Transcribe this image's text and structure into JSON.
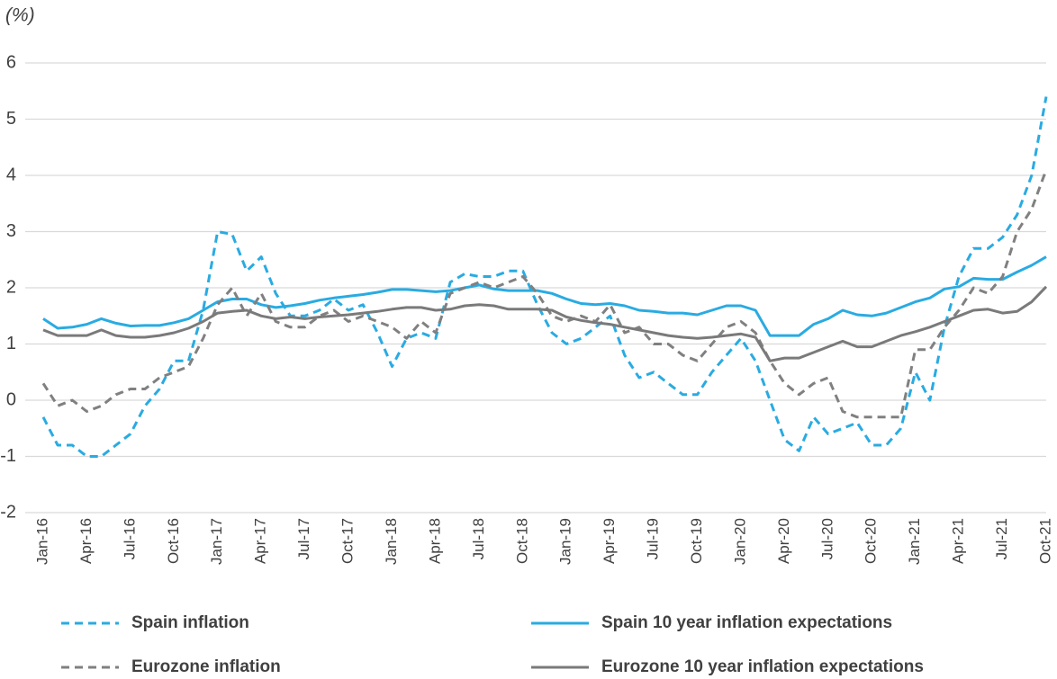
{
  "chart_data": {
    "type": "line",
    "y_label": "(%)",
    "categories": [
      "Jan-16",
      null,
      null,
      "Apr-16",
      null,
      null,
      "Jul-16",
      null,
      null,
      "Oct-16",
      null,
      null,
      "Jan-17",
      null,
      null,
      "Apr-17",
      null,
      null,
      "Jul-17",
      null,
      null,
      "Oct-17",
      null,
      null,
      "Jan-18",
      null,
      null,
      "Apr-18",
      null,
      null,
      "Jul-18",
      null,
      null,
      "Oct-18",
      null,
      null,
      "Jan-19",
      null,
      null,
      "Apr-19",
      null,
      null,
      "Jul-19",
      null,
      null,
      "Oct-19",
      null,
      null,
      "Jan-20",
      null,
      null,
      "Apr-20",
      null,
      null,
      "Jul-20",
      null,
      null,
      "Oct-20",
      null,
      null,
      "Jan-21",
      null,
      null,
      "Apr-21",
      null,
      null,
      "Jul-21",
      null,
      null,
      "Oct-21"
    ],
    "series": [
      {
        "name": "Spain inflation",
        "color": "#29abe2",
        "style": "dashed",
        "values": [
          -0.3,
          -0.8,
          -0.8,
          -1.0,
          -1.0,
          -0.8,
          -0.6,
          -0.1,
          0.2,
          0.7,
          0.7,
          1.6,
          3.0,
          2.95,
          2.3,
          2.55,
          1.9,
          1.5,
          1.5,
          1.6,
          1.8,
          1.6,
          1.7,
          1.2,
          0.6,
          1.1,
          1.2,
          1.1,
          2.1,
          2.25,
          2.2,
          2.2,
          2.3,
          2.3,
          1.7,
          1.2,
          1.0,
          1.1,
          1.3,
          1.5,
          0.8,
          0.4,
          0.5,
          0.3,
          0.1,
          0.1,
          0.5,
          0.8,
          1.1,
          0.7,
          0.0,
          -0.7,
          -0.9,
          -0.3,
          -0.6,
          -0.5,
          -0.4,
          -0.8,
          -0.8,
          -0.5,
          0.5,
          0.0,
          1.3,
          2.2,
          2.7,
          2.7,
          2.9,
          3.3,
          4.0,
          5.4
        ]
      },
      {
        "name": "Spain 10 year inflation expectations",
        "color": "#29abe2",
        "style": "solid",
        "values": [
          1.45,
          1.28,
          1.3,
          1.35,
          1.45,
          1.37,
          1.32,
          1.33,
          1.33,
          1.38,
          1.45,
          1.6,
          1.75,
          1.8,
          1.8,
          1.7,
          1.65,
          1.68,
          1.72,
          1.78,
          1.82,
          1.85,
          1.88,
          1.92,
          1.97,
          1.97,
          1.95,
          1.93,
          1.95,
          2.0,
          2.05,
          1.98,
          1.95,
          1.95,
          1.95,
          1.9,
          1.8,
          1.72,
          1.7,
          1.72,
          1.68,
          1.6,
          1.58,
          1.55,
          1.55,
          1.52,
          1.6,
          1.68,
          1.68,
          1.6,
          1.15,
          1.15,
          1.15,
          1.35,
          1.45,
          1.6,
          1.52,
          1.5,
          1.55,
          1.65,
          1.75,
          1.82,
          1.98,
          2.02,
          2.17,
          2.15,
          2.15,
          2.28,
          2.4,
          2.55
        ]
      },
      {
        "name": "Eurozone inflation",
        "color": "#808080",
        "style": "dashed",
        "values": [
          0.3,
          -0.1,
          0.0,
          -0.2,
          -0.1,
          0.1,
          0.2,
          0.2,
          0.4,
          0.5,
          0.6,
          1.1,
          1.7,
          2.0,
          1.5,
          1.9,
          1.4,
          1.3,
          1.3,
          1.5,
          1.6,
          1.4,
          1.5,
          1.4,
          1.3,
          1.1,
          1.4,
          1.2,
          1.9,
          2.0,
          2.1,
          2.0,
          2.1,
          2.2,
          1.9,
          1.5,
          1.4,
          1.5,
          1.4,
          1.7,
          1.2,
          1.3,
          1.0,
          1.0,
          0.8,
          0.7,
          1.0,
          1.3,
          1.4,
          1.2,
          0.7,
          0.3,
          0.1,
          0.3,
          0.4,
          -0.2,
          -0.3,
          -0.3,
          -0.3,
          -0.3,
          0.9,
          0.9,
          1.3,
          1.6,
          2.0,
          1.9,
          2.2,
          3.0,
          3.4,
          4.1
        ]
      },
      {
        "name": "Eurozone 10 year inflation expectations",
        "color": "#7a7a7a",
        "style": "solid",
        "values": [
          1.25,
          1.15,
          1.15,
          1.15,
          1.25,
          1.15,
          1.12,
          1.12,
          1.15,
          1.2,
          1.28,
          1.4,
          1.55,
          1.58,
          1.6,
          1.5,
          1.45,
          1.48,
          1.45,
          1.48,
          1.5,
          1.52,
          1.55,
          1.58,
          1.62,
          1.65,
          1.65,
          1.6,
          1.62,
          1.68,
          1.7,
          1.68,
          1.62,
          1.62,
          1.62,
          1.6,
          1.48,
          1.42,
          1.38,
          1.35,
          1.3,
          1.25,
          1.2,
          1.15,
          1.12,
          1.1,
          1.12,
          1.15,
          1.18,
          1.12,
          0.7,
          0.75,
          0.75,
          0.85,
          0.95,
          1.05,
          0.95,
          0.95,
          1.05,
          1.15,
          1.22,
          1.3,
          1.4,
          1.5,
          1.6,
          1.62,
          1.55,
          1.58,
          1.75,
          2.02
        ]
      }
    ],
    "ylim": [
      -2,
      6
    ],
    "yticks": [
      -2,
      -1,
      0,
      1,
      2,
      3,
      4,
      5,
      6
    ],
    "grid": true
  }
}
